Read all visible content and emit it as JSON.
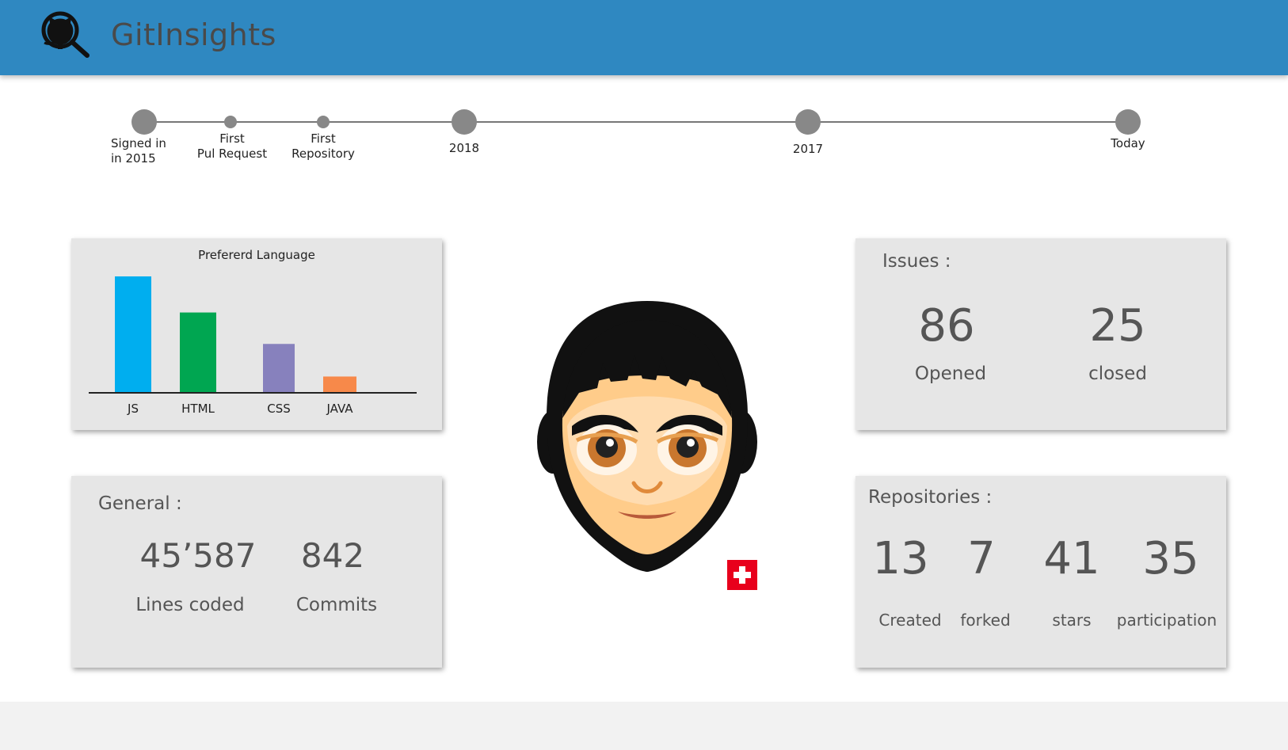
{
  "header": {
    "title": "GitInsights",
    "logo_icon": "github-search-icon",
    "background": "#2f88c1"
  },
  "timeline": {
    "events": [
      {
        "label": "Signed in\nin 2015",
        "size": "big"
      },
      {
        "label": "First\nPul Request",
        "size": "small"
      },
      {
        "label": "First\nRepository",
        "size": "small"
      },
      {
        "label": "2018",
        "size": "big"
      },
      {
        "label": "2017",
        "size": "big"
      },
      {
        "label": "Today",
        "size": "big"
      }
    ]
  },
  "language_card": {
    "chart_data": {
      "type": "bar",
      "title": "Prefererd Language",
      "categories": [
        "JS",
        "HTML",
        "CSS",
        "JAVA"
      ],
      "values": [
        100,
        69,
        42,
        14
      ],
      "colors": [
        "#00aeef",
        "#00a651",
        "#8781bd",
        "#f7894a"
      ],
      "xlabel": "",
      "ylabel": "",
      "grid": false
    }
  },
  "general": {
    "heading": "General :",
    "lines_value": "45’587",
    "lines_label": "Lines coded",
    "commits_value": "842",
    "commits_label": "Commits"
  },
  "issues": {
    "heading": "Issues :",
    "opened_value": "86",
    "opened_label": "Opened",
    "closed_value": "25",
    "closed_label": "closed"
  },
  "repositories": {
    "heading": "Repositories :",
    "created_value": "13",
    "created_label": "Created",
    "forked_value": "7",
    "forked_label": "forked",
    "stars_value": "41",
    "stars_label": "stars",
    "participation_value": "35",
    "participation_label": "participation"
  },
  "profile": {
    "avatar_icon": "user-avatar-icon",
    "flag_icon": "swiss-flag-icon"
  }
}
